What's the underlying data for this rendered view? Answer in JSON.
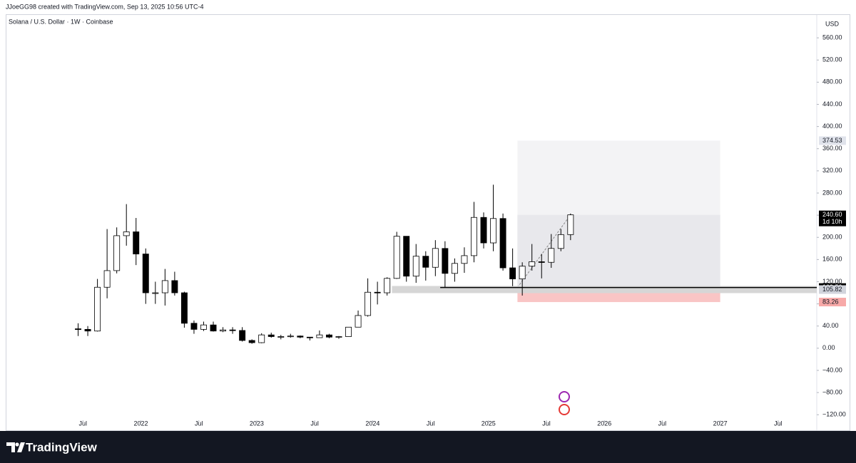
{
  "header": "JJoeGG98 created with TradingView.com, Sep 13, 2025 10:56 UTC-4",
  "brand": "TradingView",
  "chart_data": {
    "type": "candlestick",
    "title": "Solana / U.S. Dollar · 1W · Coinbase",
    "currency": "USD",
    "up_color": "#ffffff",
    "down_color": "#000000",
    "x": [
      "2021-06",
      "2021-07",
      "2021-08",
      "2021-09",
      "2021-10",
      "2021-11",
      "2021-12",
      "2022-01",
      "2022-02",
      "2022-03",
      "2022-04",
      "2022-05",
      "2022-06",
      "2022-07",
      "2022-08",
      "2022-09",
      "2022-10",
      "2022-11",
      "2022-12",
      "2023-01",
      "2023-02",
      "2023-03",
      "2023-04",
      "2023-05",
      "2023-06",
      "2023-07",
      "2023-08",
      "2023-09",
      "2023-10",
      "2023-11",
      "2023-12",
      "2024-01",
      "2024-02",
      "2024-03",
      "2024-04",
      "2024-05",
      "2024-06",
      "2024-07",
      "2024-08",
      "2024-09",
      "2024-10",
      "2024-11",
      "2024-12",
      "2025-01",
      "2025-02",
      "2025-03",
      "2025-04",
      "2025-05",
      "2025-06",
      "2025-07",
      "2025-08",
      "2025-09"
    ],
    "open": [
      35,
      34,
      31,
      110,
      140,
      203,
      210,
      170,
      100,
      100,
      122,
      100,
      45,
      34,
      42,
      31,
      33,
      32,
      14,
      10,
      24,
      21,
      21,
      22,
      20,
      19,
      24,
      20,
      21,
      38,
      59,
      101,
      100,
      126,
      202,
      130,
      166,
      146,
      180,
      135,
      153,
      167,
      236,
      190,
      234,
      145,
      125,
      148,
      156,
      155,
      180,
      205
    ],
    "high": [
      45,
      40,
      125,
      215,
      218,
      260,
      235,
      180,
      120,
      143,
      138,
      102,
      50,
      48,
      48,
      38,
      38,
      38,
      16,
      27,
      28,
      24,
      26,
      23,
      20,
      32,
      26,
      22,
      38,
      68,
      126,
      120,
      128,
      210,
      202,
      188,
      175,
      195,
      193,
      162,
      182,
      264,
      245,
      295,
      243,
      180,
      155,
      188,
      170,
      206,
      215,
      243
    ],
    "low": [
      22,
      22,
      30,
      90,
      135,
      185,
      150,
      80,
      80,
      77,
      95,
      37,
      26,
      31,
      30,
      29,
      26,
      12,
      8,
      9,
      19,
      16,
      19,
      18,
      14,
      19,
      18,
      17,
      21,
      38,
      57,
      79,
      95,
      125,
      120,
      118,
      122,
      130,
      110,
      120,
      136,
      155,
      180,
      175,
      140,
      112,
      95,
      140,
      126,
      145,
      175,
      195
    ],
    "close": [
      34,
      31,
      110,
      140,
      203,
      210,
      170,
      100,
      100,
      122,
      100,
      45,
      34,
      42,
      31,
      33,
      32,
      14,
      10,
      24,
      21,
      21,
      22,
      20,
      19,
      24,
      20,
      21,
      38,
      59,
      101,
      100,
      126,
      202,
      130,
      166,
      146,
      180,
      135,
      153,
      167,
      236,
      190,
      234,
      145,
      125,
      148,
      156,
      155,
      180,
      205,
      240.6
    ],
    "xlim": [
      "2020-11",
      "2027-11"
    ],
    "xticks": [
      {
        "value": "2021-07",
        "label": "Jul"
      },
      {
        "value": "2022-01",
        "label": "2022"
      },
      {
        "value": "2022-07",
        "label": "Jul"
      },
      {
        "value": "2023-01",
        "label": "2023"
      },
      {
        "value": "2023-07",
        "label": "Jul"
      },
      {
        "value": "2024-01",
        "label": "2024"
      },
      {
        "value": "2024-07",
        "label": "Jul"
      },
      {
        "value": "2025-01",
        "label": "2025"
      },
      {
        "value": "2025-07",
        "label": "Jul"
      },
      {
        "value": "2026-01",
        "label": "2026"
      },
      {
        "value": "2026-07",
        "label": "Jul"
      },
      {
        "value": "2027-01",
        "label": "2027"
      },
      {
        "value": "2027-07",
        "label": "Jul"
      }
    ],
    "ylim": [
      -130,
      600
    ],
    "yticks": [
      {
        "value": -120,
        "label": "−120.00"
      },
      {
        "value": -80,
        "label": "−80.00"
      },
      {
        "value": -40,
        "label": "−40.00"
      },
      {
        "value": 0,
        "label": "0.00"
      },
      {
        "value": 40,
        "label": "40.00"
      },
      {
        "value": 80,
        "label": "80.00"
      },
      {
        "value": 120,
        "label": "120.00"
      },
      {
        "value": 160,
        "label": "160.00"
      },
      {
        "value": 200,
        "label": "200.00"
      },
      {
        "value": 240,
        "label": "240.00"
      },
      {
        "value": 280,
        "label": "280.00"
      },
      {
        "value": 320,
        "label": "320.00"
      },
      {
        "value": 360,
        "label": "360.00"
      },
      {
        "value": 400,
        "label": "400.00"
      },
      {
        "value": 440,
        "label": "440.00"
      },
      {
        "value": 480,
        "label": "480.00"
      },
      {
        "value": 520,
        "label": "520.00"
      },
      {
        "value": 560,
        "label": "560.00"
      }
    ],
    "position": {
      "start": "2025-04",
      "end": "2027-01",
      "entry": 109.5,
      "target": 374.53,
      "stop": 83.26,
      "current": 240.6
    },
    "support": {
      "level": 105.82,
      "start": "2024-03"
    },
    "horizontal_line": {
      "level": 109.5,
      "start": "2024-08"
    },
    "price_labels": [
      {
        "value": 374.53,
        "label": "374.53",
        "color": "#e0e3eb",
        "text_color": "#131722"
      },
      {
        "value": 240.6,
        "label": "240.60",
        "sub": "1d 10h",
        "color": "#000000",
        "text_color": "#ffffff"
      },
      {
        "value": 109.5,
        "label": "109.50",
        "color": "#000000",
        "text_color": "#ffffff"
      },
      {
        "value": 105.82,
        "label": "105.82",
        "color": "#d1d4dc",
        "text_color": "#131722"
      },
      {
        "value": 83.26,
        "label": "83.26",
        "color": "#f7a9a8",
        "text_color": "#131722"
      }
    ]
  }
}
